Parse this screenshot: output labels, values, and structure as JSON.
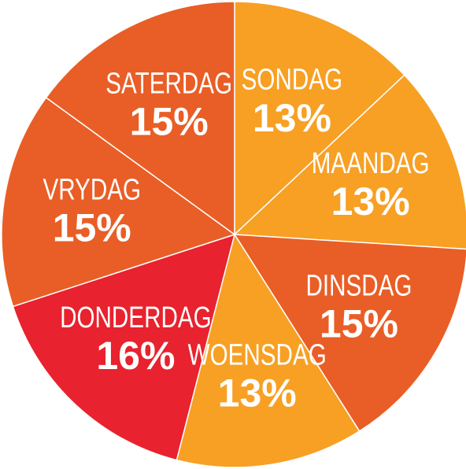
{
  "chart_data": {
    "type": "pie",
    "categories": [
      "SONDAG",
      "MAANDAG",
      "DINSDAG",
      "WOENSDAG",
      "DONDERDAG",
      "VRYDAG",
      "SATERDAG"
    ],
    "values": [
      13,
      13,
      15,
      13,
      16,
      15,
      15
    ],
    "value_labels": [
      "13%",
      "13%",
      "15%",
      "13%",
      "16%",
      "15%",
      "15%"
    ],
    "colors": [
      "#f7a024",
      "#f7a024",
      "#e95e26",
      "#f7a024",
      "#e8222e",
      "#e95e26",
      "#e95e26"
    ]
  }
}
